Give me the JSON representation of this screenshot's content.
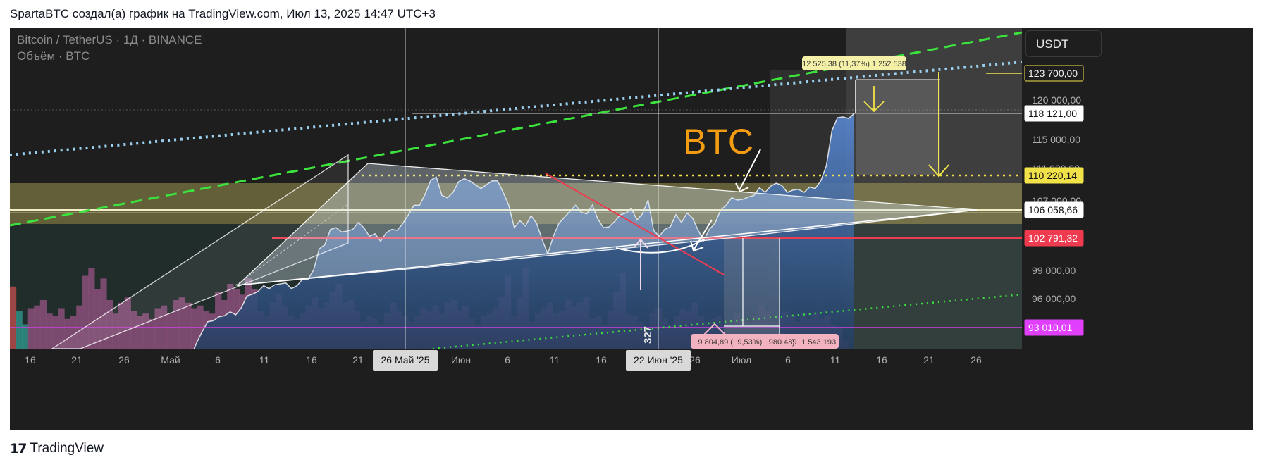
{
  "header": {
    "title": "SpartaBTC создал(а) график на TradingView.com, Июл 13, 2025 14:47 UTC+3"
  },
  "legend": {
    "symbol": "Bitcoin / TetherUS · 1Д · BINANCE",
    "volume": "Объём · BTC"
  },
  "currency_button": "USDT",
  "annotation_text": "BTC",
  "measure_up": {
    "label": "12 525,38 (11,37%) 1 252 538"
  },
  "measure_down": {
    "label": "−9 804,89 (−9,53%) −980 489",
    "label2": ") −1 543 193"
  },
  "volume_marker": "327",
  "footer": {
    "logo": "TradingView"
  },
  "colors": {
    "bg": "#1e1e1e",
    "area_top": "#4f7cc8",
    "yellow_band": "#d9d36a",
    "red": "#ef3b50",
    "magenta": "#e040fb",
    "green_dash": "#4cdc4c",
    "dotted_blue": "#9ad0ee"
  },
  "chart_data": {
    "type": "area",
    "symbol": "BTCUSDT",
    "timeframe": "1D",
    "x_ticks": [
      "16",
      "21",
      "26",
      "Май",
      "6",
      "11",
      "16",
      "21",
      "26 Май '25",
      "Июн",
      "6",
      "11",
      "16",
      "22 Июн '25",
      "26",
      "Июл",
      "6",
      "11",
      "16",
      "21",
      "26"
    ],
    "y_ticks": [
      "120 000,00",
      "115 000,00",
      "111 000,00",
      "107 000,00",
      "99 000,00",
      "96 000,00"
    ],
    "price_labels": [
      {
        "text": "123 700,00",
        "value": 123700,
        "style": "outline"
      },
      {
        "text": "118 121,00",
        "value": 118121,
        "style": "white"
      },
      {
        "text": "110 220,14",
        "value": 110220.14,
        "style": "yellow"
      },
      {
        "text": "106 058,66",
        "value": 106058.66,
        "style": "white"
      },
      {
        "text": "102 791,32",
        "value": 102791.32,
        "style": "red"
      },
      {
        "text": "93 010,01",
        "value": 93010.01,
        "style": "magenta"
      }
    ],
    "crosshair_dates": [
      "26 Май '25",
      "22 Июн '25"
    ],
    "series": [
      {
        "name": "Bitcoin / TetherUS",
        "points": [
          [
            0,
            84500
          ],
          [
            1,
            84800
          ],
          [
            2,
            85300
          ],
          [
            3,
            85100
          ],
          [
            4,
            85700
          ],
          [
            5,
            85300
          ],
          [
            6,
            85400
          ],
          [
            7,
            87000
          ],
          [
            8,
            87800
          ],
          [
            9,
            87600
          ],
          [
            10,
            87300
          ],
          [
            11,
            87500
          ],
          [
            12,
            86700
          ],
          [
            13,
            87500
          ],
          [
            14,
            88400
          ],
          [
            15,
            88600
          ],
          [
            16,
            87400
          ],
          [
            17,
            87800
          ],
          [
            18,
            88800
          ],
          [
            19,
            89300
          ],
          [
            20,
            91000
          ],
          [
            21,
            92500
          ],
          [
            22,
            93600
          ],
          [
            23,
            93700
          ],
          [
            24,
            94100
          ],
          [
            25,
            94200
          ],
          [
            26,
            94600
          ],
          [
            27,
            94300
          ],
          [
            28,
            95000
          ],
          [
            29,
            96200
          ],
          [
            30,
            96400
          ],
          [
            31,
            96700
          ],
          [
            32,
            97300
          ],
          [
            33,
            97000
          ],
          [
            34,
            97400
          ],
          [
            35,
            97500
          ],
          [
            36,
            97600
          ],
          [
            37,
            97000
          ],
          [
            38,
            97300
          ],
          [
            39,
            98000
          ],
          [
            40,
            98000
          ],
          [
            41,
            99000
          ],
          [
            42,
            101500
          ],
          [
            43,
            102000
          ],
          [
            44,
            103800
          ],
          [
            45,
            104000
          ],
          [
            46,
            103500
          ],
          [
            47,
            103600
          ],
          [
            48,
            103800
          ],
          [
            49,
            104600
          ],
          [
            50,
            104000
          ],
          [
            51,
            103000
          ],
          [
            52,
            103300
          ],
          [
            53,
            102400
          ],
          [
            54,
            103400
          ],
          [
            55,
            103800
          ],
          [
            56,
            103700
          ],
          [
            57,
            104500
          ],
          [
            58,
            105500
          ],
          [
            59,
            106500
          ],
          [
            60,
            106500
          ],
          [
            61,
            107800
          ],
          [
            62,
            109600
          ],
          [
            63,
            110000
          ],
          [
            64,
            107600
          ],
          [
            65,
            107300
          ],
          [
            66,
            108000
          ],
          [
            67,
            109400
          ],
          [
            68,
            109800
          ],
          [
            69,
            109500
          ],
          [
            70,
            109000
          ],
          [
            71,
            108500
          ],
          [
            72,
            109000
          ],
          [
            73,
            109500
          ],
          [
            74,
            109500
          ],
          [
            75,
            108000
          ],
          [
            76,
            106500
          ],
          [
            77,
            104000
          ],
          [
            78,
            104800
          ],
          [
            79,
            104200
          ],
          [
            80,
            105400
          ],
          [
            81,
            104500
          ],
          [
            82,
            102600
          ],
          [
            83,
            100900
          ],
          [
            84,
            103000
          ],
          [
            85,
            104500
          ],
          [
            86,
            105200
          ],
          [
            87,
            105900
          ],
          [
            88,
            106500
          ],
          [
            89,
            105800
          ],
          [
            90,
            105600
          ],
          [
            91,
            106500
          ],
          [
            92,
            105000
          ],
          [
            93,
            104000
          ],
          [
            94,
            104100
          ],
          [
            95,
            104700
          ],
          [
            96,
            105500
          ],
          [
            97,
            105700
          ],
          [
            98,
            106200
          ],
          [
            99,
            104900
          ],
          [
            100,
            105600
          ],
          [
            101,
            107000
          ],
          [
            102,
            103700
          ],
          [
            103,
            103000
          ],
          [
            104,
            103800
          ],
          [
            105,
            104100
          ],
          [
            106,
            105500
          ],
          [
            107,
            104600
          ],
          [
            108,
            105700
          ],
          [
            109,
            105100
          ],
          [
            110,
            103700
          ],
          [
            111,
            102500
          ],
          [
            112,
            103800
          ],
          [
            113,
            104500
          ],
          [
            114,
            106000
          ],
          [
            115,
            106500
          ],
          [
            116,
            107300
          ],
          [
            117,
            107000
          ],
          [
            118,
            107100
          ],
          [
            119,
            107400
          ],
          [
            120,
            107600
          ],
          [
            121,
            108600
          ],
          [
            122,
            108000
          ],
          [
            123,
            108800
          ],
          [
            124,
            109200
          ],
          [
            125,
            108900
          ],
          [
            126,
            108000
          ],
          [
            127,
            108300
          ],
          [
            128,
            108400
          ],
          [
            129,
            108000
          ],
          [
            130,
            108700
          ],
          [
            131,
            108500
          ],
          [
            132,
            109500
          ],
          [
            133,
            111300
          ],
          [
            134,
            116000
          ],
          [
            135,
            117600
          ],
          [
            136,
            117700
          ],
          [
            137,
            117500
          ],
          [
            138,
            118121
          ]
        ]
      },
      {
        "name": "Объём · BTC",
        "values": [
          23,
          14,
          9,
          15,
          16,
          18,
          13,
          12,
          15,
          11,
          12,
          16,
          27,
          30,
          22,
          26,
          18,
          13,
          17,
          19,
          14,
          12,
          13,
          11,
          15,
          16,
          13,
          18,
          19,
          17,
          15,
          16,
          14,
          13,
          21,
          18,
          24,
          22,
          20,
          26,
          22,
          14,
          12,
          17,
          20,
          16,
          12,
          11,
          13,
          16,
          19,
          15,
          17,
          21,
          24,
          17,
          18,
          14,
          10,
          12,
          11,
          9,
          13,
          17,
          14,
          12,
          10,
          12,
          15,
          14,
          16,
          13,
          17,
          18,
          14,
          16,
          11,
          9,
          12,
          13,
          15,
          19,
          27,
          12,
          19,
          30,
          10,
          13,
          15,
          17,
          13,
          14,
          18,
          16,
          17,
          19,
          11,
          12,
          9,
          14,
          21,
          28,
          13,
          12,
          10,
          8,
          13,
          15,
          11,
          9,
          12,
          15,
          14,
          17,
          12,
          10,
          11,
          12,
          9,
          8,
          13,
          11,
          10,
          12,
          16,
          14,
          10,
          12,
          14,
          12,
          10,
          13,
          11,
          13,
          11,
          12,
          9,
          8,
          3
        ]
      }
    ],
    "x_range": [
      "2025-04-13",
      "2025-07-29"
    ],
    "y_range": [
      86000,
      128000
    ]
  }
}
